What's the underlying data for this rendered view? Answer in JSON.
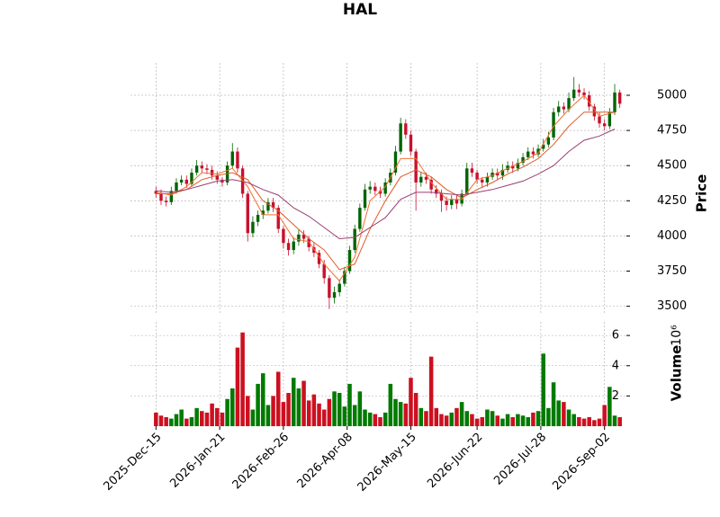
{
  "chart_data": {
    "type": "candlestick",
    "title": "HAL",
    "ylabel": "Price",
    "volume_label": "Volume",
    "volume_offset": "10⁶",
    "up_color": "#006400",
    "down_color": "#c8102e",
    "volume_up_color": "#007a00",
    "volume_down_color": "#cc1020",
    "grid": true,
    "xlim": [
      -5,
      93
    ],
    "xticks": [
      {
        "value": 0,
        "label": "2025-Dec-15"
      },
      {
        "value": 12.5,
        "label": "2026-Jan-21"
      },
      {
        "value": 25,
        "label": "2026-Feb-26"
      },
      {
        "value": 37.5,
        "label": "2026-Apr-08"
      },
      {
        "value": 50,
        "label": "2026-May-15"
      },
      {
        "value": 63,
        "label": "2026-Jun-22"
      },
      {
        "value": 75.5,
        "label": "2026-Jul-28"
      },
      {
        "value": 88,
        "label": "2026-Sep-02"
      }
    ],
    "ylim": [
      3440,
      5230
    ],
    "yticks": [
      3500,
      3750,
      4000,
      4250,
      4500,
      4750,
      5000
    ],
    "volume_ylim": [
      0,
      6.9
    ],
    "volume_yticks": [
      2,
      4,
      6
    ],
    "open": [
      4320,
      4300,
      4250,
      4240,
      4320,
      4380,
      4400,
      4370,
      4450,
      4500,
      4480,
      4470,
      4430,
      4400,
      4380,
      4500,
      4600,
      4480,
      4300,
      4020,
      4100,
      4150,
      4180,
      4240,
      4200,
      4050,
      3950,
      3900,
      3960,
      4010,
      3980,
      3920,
      3880,
      3800,
      3700,
      3560,
      3600,
      3660,
      3750,
      3900,
      4050,
      4200,
      4330,
      4350,
      4320,
      4300,
      4380,
      4450,
      4600,
      4800,
      4720,
      4600,
      4380,
      4420,
      4400,
      4330,
      4300,
      4250,
      4220,
      4260,
      4230,
      4300,
      4480,
      4450,
      4400,
      4380,
      4420,
      4450,
      4430,
      4470,
      4500,
      4480,
      4520,
      4560,
      4600,
      4580,
      4620,
      4650,
      4700,
      4880,
      4920,
      4900,
      4980,
      5040,
      5020,
      5000,
      4920,
      4850,
      4800,
      4780,
      4880,
      5020
    ],
    "high": [
      4350,
      4330,
      4280,
      4350,
      4410,
      4430,
      4430,
      4480,
      4540,
      4530,
      4510,
      4500,
      4460,
      4420,
      4530,
      4660,
      4630,
      4500,
      4320,
      4140,
      4180,
      4220,
      4270,
      4270,
      4220,
      4070,
      3980,
      3990,
      4050,
      4040,
      4000,
      3950,
      3900,
      3830,
      3720,
      3640,
      3690,
      3780,
      3930,
      4080,
      4230,
      4370,
      4390,
      4380,
      4350,
      4410,
      4480,
      4640,
      4840,
      4830,
      4750,
      4620,
      4450,
      4450,
      4420,
      4360,
      4330,
      4280,
      4290,
      4290,
      4330,
      4520,
      4520,
      4470,
      4420,
      4450,
      4480,
      4480,
      4510,
      4530,
      4530,
      4550,
      4590,
      4630,
      4630,
      4650,
      4690,
      4740,
      4910,
      4960,
      4950,
      5020,
      5130,
      5080,
      5050,
      5030,
      4940,
      4880,
      4830,
      4910,
      5080,
      5040
    ],
    "low": [
      4270,
      4220,
      4210,
      4220,
      4300,
      4360,
      4340,
      4350,
      4430,
      4450,
      4440,
      4400,
      4370,
      4350,
      4360,
      4480,
      4450,
      4270,
      3960,
      3990,
      4070,
      4120,
      4160,
      4170,
      4020,
      3910,
      3860,
      3870,
      3930,
      3950,
      3890,
      3850,
      3770,
      3660,
      3480,
      3520,
      3570,
      3640,
      3730,
      3880,
      4030,
      4180,
      4300,
      4290,
      4270,
      4280,
      4360,
      4430,
      4580,
      4690,
      4570,
      4180,
      4350,
      4370,
      4300,
      4270,
      4170,
      4180,
      4190,
      4190,
      4210,
      4290,
      4420,
      4370,
      4340,
      4350,
      4400,
      4400,
      4400,
      4450,
      4450,
      4460,
      4500,
      4540,
      4550,
      4560,
      4600,
      4630,
      4680,
      4850,
      4870,
      4880,
      4960,
      4990,
      4970,
      4890,
      4820,
      4770,
      4750,
      4760,
      4860,
      4910
    ],
    "close": [
      4300,
      4250,
      4240,
      4320,
      4380,
      4400,
      4370,
      4450,
      4500,
      4480,
      4470,
      4430,
      4400,
      4380,
      4500,
      4600,
      4480,
      4300,
      4020,
      4100,
      4150,
      4180,
      4240,
      4200,
      4050,
      3950,
      3900,
      3960,
      4010,
      3980,
      3920,
      3880,
      3800,
      3700,
      3560,
      3600,
      3660,
      3750,
      3900,
      4050,
      4200,
      4330,
      4350,
      4320,
      4300,
      4380,
      4450,
      4600,
      4800,
      4720,
      4600,
      4380,
      4420,
      4400,
      4330,
      4300,
      4250,
      4220,
      4260,
      4230,
      4300,
      4480,
      4450,
      4400,
      4380,
      4420,
      4450,
      4430,
      4470,
      4500,
      4480,
      4520,
      4560,
      4600,
      4580,
      4620,
      4650,
      4700,
      4880,
      4920,
      4900,
      4980,
      5040,
      5020,
      5000,
      4920,
      4850,
      4800,
      4780,
      4880,
      5020,
      4940
    ],
    "volume": [
      0.9,
      0.7,
      0.6,
      0.5,
      0.8,
      1.1,
      0.5,
      0.6,
      1.2,
      1.0,
      0.9,
      1.5,
      1.2,
      0.9,
      1.8,
      2.5,
      5.2,
      6.2,
      2.0,
      1.1,
      2.8,
      3.5,
      1.4,
      2.0,
      3.6,
      1.6,
      2.2,
      3.2,
      2.5,
      3.0,
      1.7,
      2.1,
      1.5,
      1.1,
      1.8,
      2.3,
      2.2,
      1.3,
      2.8,
      1.4,
      2.3,
      1.1,
      0.9,
      0.8,
      0.6,
      0.9,
      2.8,
      1.8,
      1.6,
      1.5,
      3.2,
      2.2,
      1.2,
      1.0,
      4.6,
      1.2,
      0.8,
      0.7,
      0.9,
      1.2,
      1.6,
      1.0,
      0.8,
      0.5,
      0.6,
      1.1,
      1.0,
      0.7,
      0.5,
      0.8,
      0.6,
      0.8,
      0.7,
      0.6,
      0.9,
      1.0,
      4.8,
      1.2,
      2.9,
      1.7,
      1.6,
      1.1,
      0.8,
      0.6,
      0.5,
      0.6,
      0.4,
      0.5,
      1.4,
      2.6,
      0.7,
      0.6
    ],
    "ma_x": [
      0,
      3,
      6,
      9,
      12,
      15,
      18,
      21,
      24,
      27,
      30,
      33,
      36,
      39,
      42,
      45,
      48,
      51,
      54,
      57,
      60,
      63,
      66,
      69,
      72,
      75,
      78,
      81,
      84,
      87,
      90
    ],
    "moving_averages": [
      {
        "color": "#f07030",
        "values": [
          4310,
          4290,
          4350,
          4450,
          4440,
          4480,
          4350,
          4150,
          4150,
          3980,
          3960,
          3800,
          3680,
          3850,
          4250,
          4350,
          4550,
          4550,
          4380,
          4260,
          4260,
          4400,
          4430,
          4480,
          4530,
          4590,
          4780,
          4900,
          5000,
          4850,
          4880
        ]
      },
      {
        "color": "#e05a28",
        "values": [
          4300,
          4300,
          4330,
          4400,
          4430,
          4450,
          4400,
          4250,
          4180,
          4080,
          3980,
          3900,
          3760,
          3800,
          4050,
          4250,
          4420,
          4470,
          4420,
          4330,
          4270,
          4330,
          4380,
          4440,
          4490,
          4550,
          4650,
          4780,
          4880,
          4880,
          4880
        ]
      },
      {
        "color": "#9b3d73",
        "values": [
          4320,
          4310,
          4330,
          4360,
          4390,
          4400,
          4380,
          4330,
          4290,
          4200,
          4140,
          4060,
          3980,
          3990,
          4060,
          4130,
          4260,
          4310,
          4310,
          4300,
          4290,
          4310,
          4330,
          4360,
          4390,
          4440,
          4500,
          4600,
          4680,
          4710,
          4760
        ]
      }
    ]
  }
}
